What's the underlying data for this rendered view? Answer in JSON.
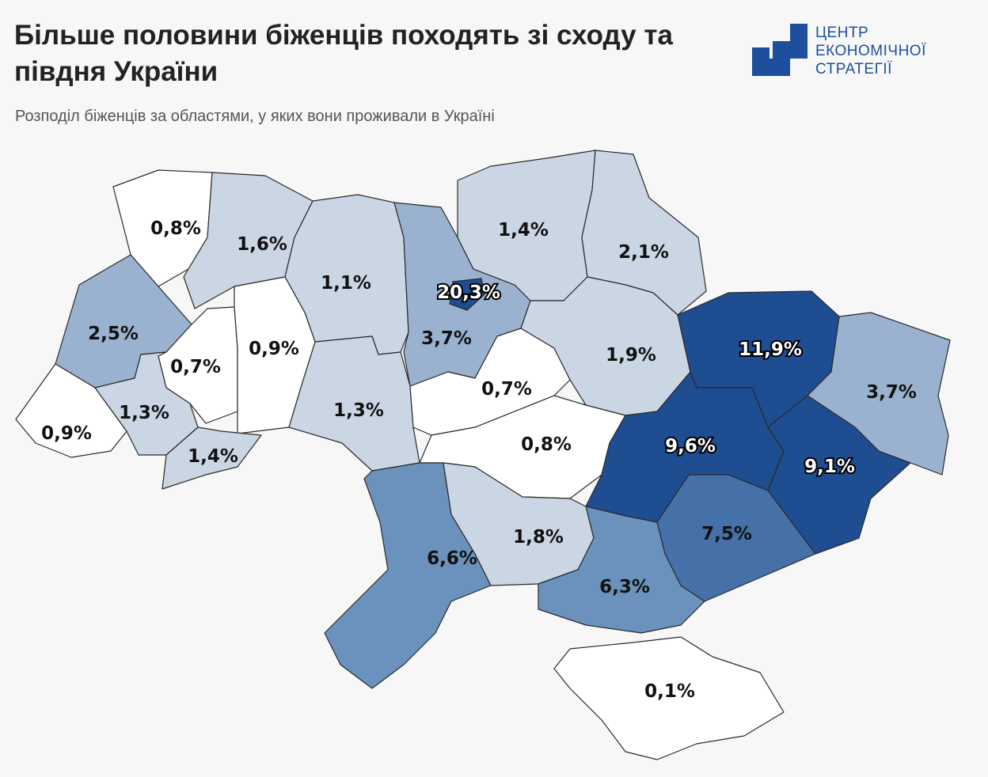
{
  "title": "Більше половини біженців походять зі сходу та півдня України",
  "subtitle": "Розподіл біженців за областями, у яких вони проживали в Україні",
  "logo": {
    "line1": "ЦЕНТР",
    "line2": "ЕКОНОМІЧНОЇ",
    "line3": "СТРАТЕГІЇ"
  },
  "colors": {
    "accent": "#1e4f9c",
    "scale": [
      "#ffffff",
      "#cad6e4",
      "#9ab2cf",
      "#6b91bd",
      "#4571a8",
      "#1f4d92"
    ]
  },
  "regions": [
    {
      "name": "volyn",
      "value": 0.8,
      "label": "0,8%"
    },
    {
      "name": "rivne",
      "value": 1.6,
      "label": "1,6%"
    },
    {
      "name": "zhytomyr",
      "value": 1.1,
      "label": "1,1%"
    },
    {
      "name": "kyiv-city",
      "value": 20.3,
      "label": "20,3%"
    },
    {
      "name": "kyiv-oblast",
      "value": 3.7,
      "label": "3,7%"
    },
    {
      "name": "chernihiv",
      "value": 1.4,
      "label": "1,4%"
    },
    {
      "name": "sumy",
      "value": 2.1,
      "label": "2,1%"
    },
    {
      "name": "lviv",
      "value": 2.5,
      "label": "2,5%"
    },
    {
      "name": "ternopil",
      "value": 0.7,
      "label": "0,7%"
    },
    {
      "name": "khmelnytskyi",
      "value": 0.9,
      "label": "0,9%"
    },
    {
      "name": "zakarpattia",
      "value": 0.9,
      "label": "0,9%"
    },
    {
      "name": "ivano-frankivsk",
      "value": 1.3,
      "label": "1,3%"
    },
    {
      "name": "chernivtsi",
      "value": 1.4,
      "label": "1,4%"
    },
    {
      "name": "vinnytsia",
      "value": 1.3,
      "label": "1,3%"
    },
    {
      "name": "cherkasy",
      "value": 0.7,
      "label": "0,7%"
    },
    {
      "name": "poltava",
      "value": 1.9,
      "label": "1,9%"
    },
    {
      "name": "kharkiv",
      "value": 11.9,
      "label": "11,9%"
    },
    {
      "name": "luhansk",
      "value": 3.7,
      "label": "3,7%"
    },
    {
      "name": "kirovohrad",
      "value": 0.8,
      "label": "0,8%"
    },
    {
      "name": "dnipropetrovsk",
      "value": 9.6,
      "label": "9,6%"
    },
    {
      "name": "donetsk",
      "value": 9.1,
      "label": "9,1%"
    },
    {
      "name": "zaporizhzhia",
      "value": 7.5,
      "label": "7,5%"
    },
    {
      "name": "odesa",
      "value": 6.6,
      "label": "6,6%"
    },
    {
      "name": "mykolaiv",
      "value": 1.8,
      "label": "1,8%"
    },
    {
      "name": "kherson",
      "value": 6.3,
      "label": "6,3%"
    },
    {
      "name": "crimea",
      "value": 0.1,
      "label": "0,1%"
    }
  ]
}
